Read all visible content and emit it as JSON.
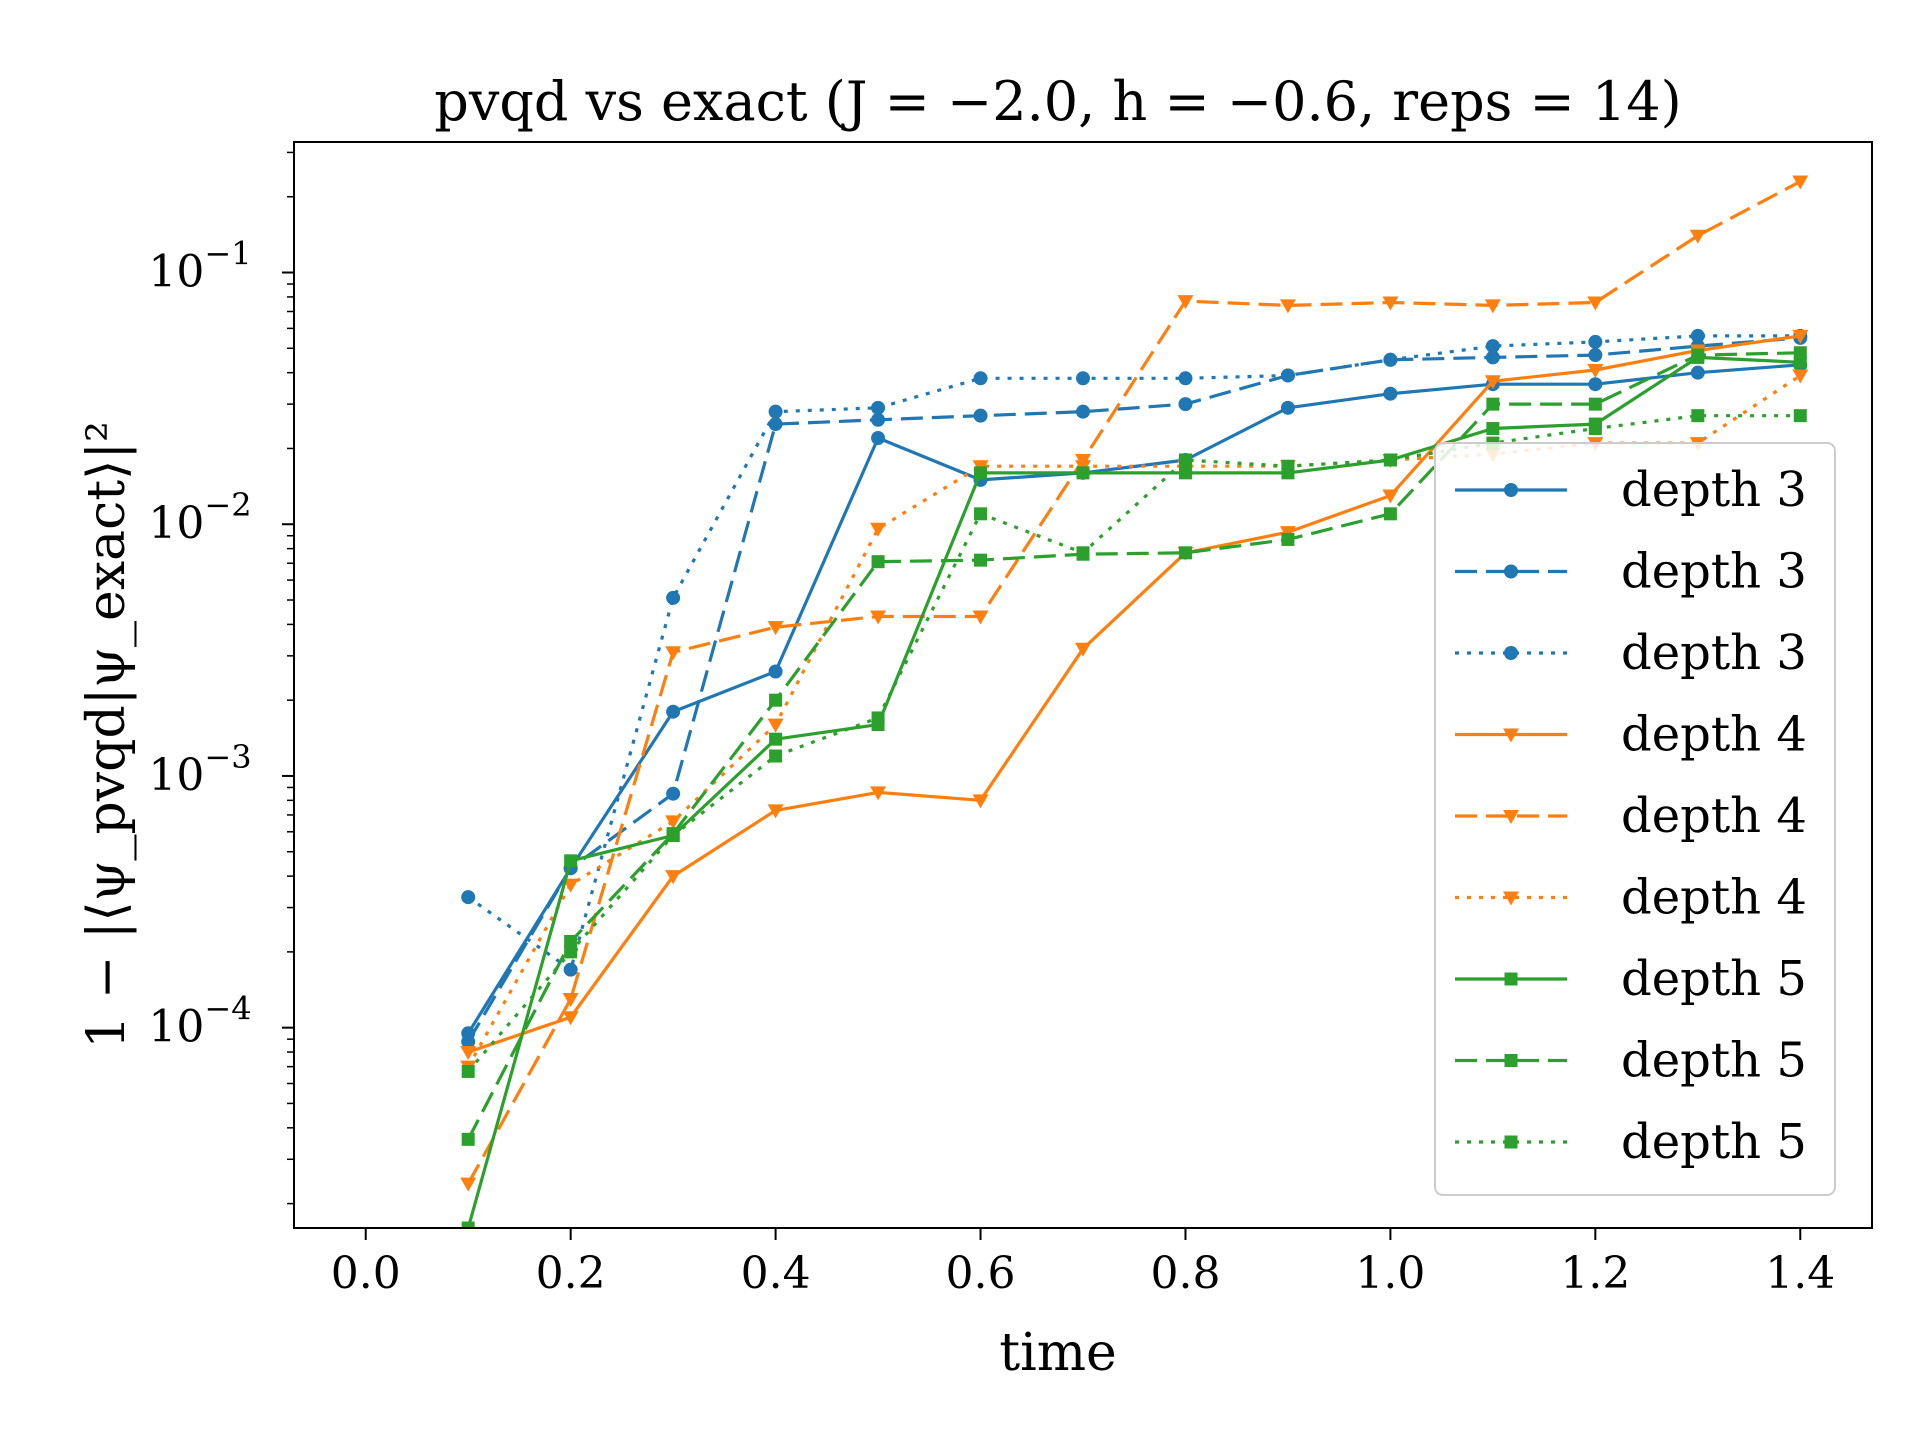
{
  "chart_data": {
    "type": "line",
    "title": "pvqd vs exact (J = −2.0, h = −0.6, reps = 14)",
    "xlabel": "time",
    "ylabel": "1 − |⟨ψ_pvqd|ψ_exact⟩|²",
    "yscale": "log",
    "xlim": [
      -0.07,
      1.47
    ],
    "ylim": [
      1.6e-05,
      0.33
    ],
    "xticks": [
      0.0,
      0.2,
      0.4,
      0.6,
      0.8,
      1.0,
      1.2,
      1.4
    ],
    "xtick_labels": [
      "0.0",
      "0.2",
      "0.4",
      "0.6",
      "0.8",
      "1.0",
      "1.2",
      "1.4"
    ],
    "yticks": [
      0.0001,
      0.001,
      0.01,
      0.1
    ],
    "ytick_labels": [
      {
        "base": "10",
        "exp": "−4"
      },
      {
        "base": "10",
        "exp": "−3"
      },
      {
        "base": "10",
        "exp": "−2"
      },
      {
        "base": "10",
        "exp": "−1"
      }
    ],
    "grid": false,
    "legend_position": "right",
    "x": [
      0.1,
      0.2,
      0.3,
      0.4,
      0.5,
      0.6,
      0.7,
      0.8,
      0.9,
      1.0,
      1.1,
      1.2,
      1.3,
      1.4
    ],
    "series": [
      {
        "name": "depth 3",
        "color": "#1f77b4",
        "dash": "solid",
        "marker": "circle",
        "values": [
          9.5e-05,
          0.00043,
          0.0018,
          0.0026,
          0.022,
          0.015,
          0.016,
          0.018,
          0.029,
          0.033,
          0.036,
          0.036,
          0.04,
          0.043
        ]
      },
      {
        "name": "depth 3",
        "color": "#1f77b4",
        "dash": "dashed",
        "marker": "circle",
        "values": [
          8.8e-05,
          0.00043,
          0.00085,
          0.025,
          0.026,
          0.027,
          0.028,
          0.03,
          0.039,
          0.045,
          0.046,
          0.047,
          0.051,
          0.055
        ]
      },
      {
        "name": "depth 3",
        "color": "#1f77b4",
        "dash": "dotted",
        "marker": "circle",
        "values": [
          0.00033,
          0.00017,
          0.0051,
          0.028,
          0.029,
          0.038,
          0.038,
          0.038,
          0.039,
          0.045,
          0.051,
          0.053,
          0.056,
          0.056
        ]
      },
      {
        "name": "depth 4",
        "color": "#ff7f0e",
        "dash": "solid",
        "marker": "triangle-down",
        "values": [
          8e-05,
          0.00011,
          0.0004,
          0.00073,
          0.00086,
          0.0008,
          0.0032,
          0.0077,
          0.0093,
          0.013,
          0.037,
          0.041,
          0.049,
          0.056
        ]
      },
      {
        "name": "depth 4",
        "color": "#ff7f0e",
        "dash": "dashed",
        "marker": "triangle-down",
        "values": [
          2.4e-05,
          0.00013,
          0.0031,
          0.0039,
          0.0043,
          0.0043,
          0.018,
          0.077,
          0.074,
          0.076,
          0.074,
          0.076,
          0.14,
          0.23
        ]
      },
      {
        "name": "depth 4",
        "color": "#ff7f0e",
        "dash": "dotted",
        "marker": "triangle-down",
        "values": [
          7e-05,
          0.00037,
          0.00066,
          0.0016,
          0.0096,
          0.017,
          0.017,
          0.017,
          0.017,
          0.018,
          0.019,
          0.021,
          0.021,
          0.039
        ]
      },
      {
        "name": "depth 5",
        "color": "#2ca02c",
        "dash": "solid",
        "marker": "square",
        "values": [
          1.6e-05,
          0.00046,
          0.00058,
          0.0014,
          0.0016,
          0.016,
          0.016,
          0.016,
          0.016,
          0.018,
          0.024,
          0.025,
          0.046,
          0.044
        ]
      },
      {
        "name": "depth 5",
        "color": "#2ca02c",
        "dash": "dashed",
        "marker": "square",
        "values": [
          3.6e-05,
          0.00022,
          0.00059,
          0.002,
          0.0071,
          0.0072,
          0.0076,
          0.0077,
          0.0087,
          0.011,
          0.03,
          0.03,
          0.047,
          0.048
        ]
      },
      {
        "name": "depth 5",
        "color": "#2ca02c",
        "dash": "dotted",
        "marker": "square",
        "values": [
          6.7e-05,
          0.0002,
          0.00058,
          0.0012,
          0.0017,
          0.011,
          0.0077,
          0.018,
          0.017,
          0.018,
          0.021,
          0.024,
          0.027,
          0.027
        ]
      }
    ]
  }
}
